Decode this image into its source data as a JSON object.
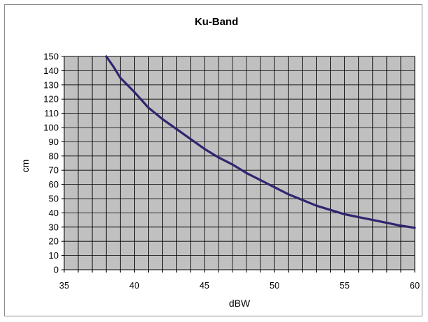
{
  "chart_data": {
    "type": "line",
    "title": "Ku-Band",
    "xlabel": "dBW",
    "ylabel": "cm",
    "xlim": [
      35,
      60
    ],
    "ylim": [
      0,
      150
    ],
    "x_ticks": [
      35,
      40,
      45,
      50,
      55,
      60
    ],
    "y_ticks": [
      0,
      10,
      20,
      30,
      40,
      50,
      60,
      70,
      80,
      90,
      100,
      110,
      120,
      130,
      140,
      150
    ],
    "x_minor_step": 1,
    "grid": true,
    "legend": "none",
    "plot_background": "#c0c0c0",
    "grid_color": "#000000",
    "series": [
      {
        "color": "#2e2570",
        "x": [
          38,
          38.5,
          39,
          40,
          41,
          42,
          43,
          44,
          45,
          46,
          47,
          48,
          49,
          50,
          51,
          52,
          53,
          54,
          55,
          56,
          57,
          58,
          59,
          60
        ],
        "y": [
          150,
          143,
          135,
          125,
          114,
          106,
          99,
          92,
          85,
          79,
          74,
          68,
          63,
          58,
          53,
          49,
          45,
          42,
          39,
          37,
          35,
          33,
          31,
          29.5
        ]
      }
    ]
  }
}
